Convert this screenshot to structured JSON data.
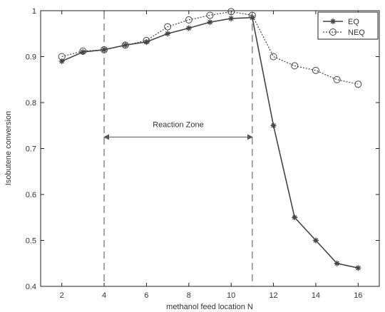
{
  "chart_data": {
    "type": "line",
    "title": "",
    "xlabel": "methanol feed location  N",
    "ylabel": "Isobutene conversion",
    "xlim": [
      1,
      17
    ],
    "ylim": [
      0.4,
      1.0
    ],
    "xticks": [
      2,
      4,
      6,
      8,
      10,
      12,
      14,
      16
    ],
    "yticks": [
      0.4,
      0.5,
      0.6,
      0.7,
      0.8,
      0.9,
      1.0
    ],
    "xtick_labels": [
      "2",
      "4",
      "6",
      "8",
      "10",
      "12",
      "14",
      "16"
    ],
    "ytick_labels": [
      "0.4",
      "0.5",
      "0.6",
      "0.7",
      "0.8",
      "0.9",
      "1"
    ],
    "grid": false,
    "legend_position": "top-right",
    "x": [
      2,
      3,
      4,
      5,
      6,
      7,
      8,
      9,
      10,
      11,
      12,
      13,
      14,
      15,
      16
    ],
    "series": [
      {
        "name": "EQ",
        "style": "solid",
        "marker": "star",
        "color": "#444444",
        "values": [
          0.89,
          0.91,
          0.915,
          0.925,
          0.932,
          0.95,
          0.962,
          0.975,
          0.983,
          0.985,
          0.75,
          0.55,
          0.5,
          0.45,
          0.44
        ]
      },
      {
        "name": "NEQ",
        "style": "dotted",
        "marker": "circle",
        "color": "#444444",
        "values": [
          0.9,
          0.912,
          0.915,
          0.925,
          0.935,
          0.965,
          0.98,
          0.99,
          0.998,
          0.99,
          0.9,
          0.88,
          0.87,
          0.85,
          0.84
        ]
      }
    ],
    "annotations": {
      "reaction_zone": {
        "label": "Reaction Zone",
        "x_start": 4,
        "x_end": 11,
        "arrow_y": 0.725
      }
    }
  }
}
